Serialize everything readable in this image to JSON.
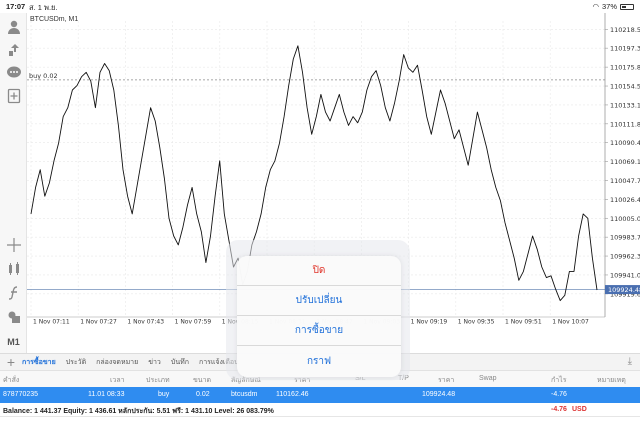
{
  "status_bar": {
    "time": "17:07",
    "date": "ส. 1 พ.ย.",
    "battery": "37%"
  },
  "chart": {
    "symbol": "BTCUSDm, M1",
    "order_line_label": "buy 0.02",
    "current_price": "109924.48"
  },
  "chart_data": {
    "type": "line",
    "title": "BTCUSDm, M1",
    "xlabel": "",
    "ylabel": "",
    "ylim": [
      109898,
      110228
    ],
    "price_ticks": [
      "110218.55",
      "110197.30",
      "110175.85",
      "110154.50",
      "110133.15",
      "110111.80",
      "110090.45",
      "110069.10",
      "110047.75",
      "110026.40",
      "110005.05",
      "109983.70",
      "109962.35",
      "109941.00",
      "109919.65"
    ],
    "time_ticks": [
      "1 Nov 07:11",
      "1 Nov 07:27",
      "1 Nov 07:43",
      "1 Nov 07:59",
      "1 Nov 08:15",
      "1 Nov 08:31",
      "1 Nov 08:47",
      "1 Nov 09:03",
      "1 Nov 09:19",
      "1 Nov 09:35",
      "1 Nov 09:51",
      "1 Nov 10:07"
    ],
    "order_line": 110161.5,
    "bid_line": 109924.48,
    "series": [
      {
        "values": [
          110010,
          110040,
          110060,
          110030,
          110045,
          110070,
          110090,
          110120,
          110130,
          110150,
          110155,
          110165,
          110170,
          110160,
          110130,
          110170,
          110180,
          110172,
          110150,
          110110,
          110060,
          110030,
          110010,
          110040,
          110070,
          110100,
          110130,
          110115,
          110085,
          110050,
          110005,
          109985,
          109975,
          109995,
          110020,
          110040,
          110010,
          109990,
          109955,
          109985,
          110030,
          110070,
          110010,
          109980,
          109950,
          109960,
          109930,
          109945,
          109975,
          109990,
          110010,
          110040,
          110060,
          110070,
          110090,
          110120,
          110155,
          110185,
          110200,
          110170,
          110130,
          110100,
          110120,
          110145,
          110125,
          110115,
          110130,
          110145,
          110125,
          110110,
          110120,
          110113,
          110125,
          110150,
          110165,
          110172,
          110155,
          110130,
          110115,
          110135,
          110160,
          110190,
          110175,
          110170,
          110178,
          110150,
          110120,
          110100,
          110125,
          110150,
          110135,
          110115,
          110095,
          110105,
          110085,
          110065,
          110095,
          110125,
          110105,
          110085,
          110060,
          110040,
          110025,
          110000,
          109980,
          109960,
          109935,
          109945,
          109965,
          109985,
          109970,
          109950,
          109938,
          109940,
          109925,
          109912,
          109918,
          109945,
          109945,
          109985,
          110010,
          110005,
          109960,
          109924
        ]
      }
    ]
  },
  "tabs": [
    "การซื้อขาย",
    "ประวัติ",
    "กล่องจดหมาย",
    "ข่าว",
    "บันทึก",
    "การแจ้งเตือน"
  ],
  "table": {
    "columns": [
      "คำสั่ง",
      "เวลา",
      "ประเภท",
      "ขนาด",
      "สัญลักษณ์",
      "ราคา",
      "S/L",
      "T/P",
      "ราคา",
      "Swap",
      "กำไร",
      "หมายเหตุ"
    ],
    "row": {
      "order": "878770235",
      "time": "11.01 08:33",
      "type": "buy",
      "size": "0.02",
      "symbol": "btcusdm",
      "open_price": "110162.46",
      "price": "109924.48",
      "profit": "-4.76"
    }
  },
  "balance": {
    "text": "Balance: 1 441.37 Equity: 1 436.61 หลักประกัน: 5.51 ฟรี: 1 431.10 Level: 26 083.79%",
    "profit": "-4.76",
    "currency": "USD"
  },
  "action_menu": {
    "close": "ปิด",
    "modify": "ปรับเปลี่ยน",
    "trade": "การซื้อขาย",
    "chart": "กราฟ"
  },
  "colors": {
    "accent": "#1e6fd9",
    "selected_row": "#2f8cf0",
    "danger": "#e0352b"
  }
}
